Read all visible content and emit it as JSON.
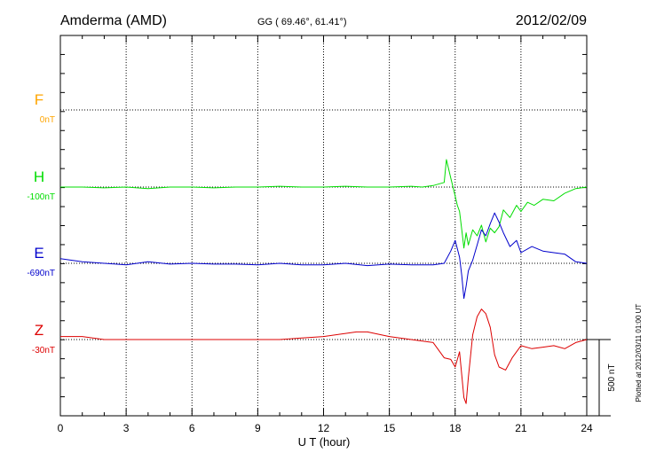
{
  "header": {
    "station": "Amderma (AMD)",
    "coords": "GG ( 69.46°,  61.41°)",
    "date": "2012/02/09"
  },
  "footnote": "Plotted at 2012/03/11 01:00 UT",
  "scale_label": "500 nT",
  "colors": {
    "F": "#ffa500",
    "H": "#00dd00",
    "E": "#0000cc",
    "Z": "#dd0000",
    "grid": "#000000"
  },
  "chart_data": {
    "type": "line",
    "xlabel": "U T (hour)",
    "xlim": [
      0,
      24
    ],
    "xticks": [
      "0",
      "3",
      "6",
      "9",
      "12",
      "15",
      "18",
      "21",
      "24"
    ],
    "scale_bar_nT": 500,
    "grid": true,
    "series": [
      {
        "name": "F",
        "baseline_label": "0nT",
        "x": [],
        "y": []
      },
      {
        "name": "H",
        "baseline_label": "-100nT",
        "x": [
          0,
          1,
          2,
          3,
          4,
          5,
          6,
          7,
          8,
          9,
          10,
          11,
          12,
          13,
          14,
          15,
          16,
          16.5,
          17,
          17.5,
          17.6,
          17.8,
          17.9,
          18.0,
          18.1,
          18.2,
          18.3,
          18.4,
          18.5,
          18.6,
          18.8,
          19.0,
          19.2,
          19.4,
          19.6,
          19.8,
          20.0,
          20.2,
          20.5,
          20.8,
          21.0,
          21.3,
          21.6,
          22.0,
          22.5,
          23.0,
          23.5,
          24
        ],
        "y": [
          0,
          0,
          -5,
          0,
          -10,
          0,
          0,
          -5,
          0,
          0,
          5,
          0,
          0,
          5,
          0,
          0,
          5,
          0,
          10,
          30,
          180,
          60,
          0,
          -60,
          -120,
          -160,
          -280,
          -400,
          -300,
          -380,
          -280,
          -320,
          -250,
          -360,
          -270,
          -300,
          -260,
          -150,
          -200,
          -120,
          -160,
          -100,
          -120,
          -80,
          -90,
          -40,
          -10,
          0
        ]
      },
      {
        "name": "E",
        "baseline_label": "-690nT",
        "x": [
          0,
          1,
          2,
          3,
          4,
          5,
          6,
          7,
          8,
          9,
          10,
          11,
          12,
          13,
          14,
          15,
          16,
          17,
          17.5,
          17.8,
          18.0,
          18.2,
          18.3,
          18.4,
          18.5,
          18.6,
          18.8,
          19.0,
          19.2,
          19.4,
          19.6,
          19.8,
          20.0,
          20.2,
          20.5,
          20.8,
          21.0,
          21.5,
          22.0,
          22.5,
          23.0,
          23.5,
          24
        ],
        "y": [
          30,
          10,
          0,
          -10,
          10,
          -5,
          0,
          -5,
          -5,
          -10,
          0,
          -10,
          -10,
          0,
          -15,
          -5,
          -10,
          -10,
          0,
          80,
          150,
          40,
          -80,
          -230,
          -150,
          -50,
          20,
          120,
          220,
          180,
          260,
          330,
          270,
          200,
          110,
          150,
          70,
          110,
          80,
          70,
          60,
          10,
          0
        ]
      },
      {
        "name": "Z",
        "baseline_label": "-30nT",
        "x": [
          0,
          1,
          2,
          3,
          4,
          5,
          6,
          7,
          8,
          9,
          10,
          11,
          12,
          13,
          13.5,
          14,
          15,
          16,
          17,
          17.5,
          17.8,
          18.0,
          18.2,
          18.4,
          18.5,
          18.6,
          18.8,
          19.0,
          19.2,
          19.4,
          19.6,
          19.8,
          20.0,
          20.3,
          20.6,
          21.0,
          21.5,
          22.0,
          22.5,
          23.0,
          23.5,
          24
        ],
        "y": [
          20,
          20,
          0,
          0,
          0,
          0,
          0,
          0,
          0,
          0,
          0,
          10,
          20,
          40,
          50,
          50,
          20,
          0,
          -20,
          -120,
          -130,
          -180,
          -80,
          -380,
          -420,
          -250,
          30,
          150,
          200,
          170,
          80,
          -100,
          -180,
          -200,
          -120,
          -40,
          -60,
          -50,
          -40,
          -60,
          -20,
          0
        ]
      }
    ]
  }
}
